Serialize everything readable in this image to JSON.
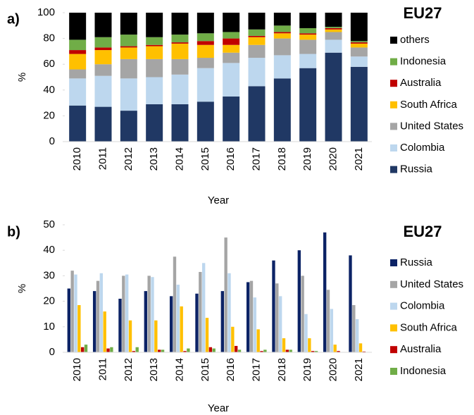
{
  "chart_data": [
    {
      "type": "bar",
      "stacked": true,
      "panel_label": "a)",
      "title": "EU27",
      "x_label": "Year",
      "y_label": "%",
      "categories": [
        "2010",
        "2011",
        "2012",
        "2013",
        "2014",
        "2015",
        "2016",
        "2017",
        "2018",
        "2019",
        "2020",
        "2021"
      ],
      "ylim": [
        0,
        100
      ],
      "yticks": [
        0,
        20,
        40,
        60,
        80,
        100
      ],
      "legend_reverse": true,
      "series": [
        {
          "name": "Russia",
          "color": "#203864",
          "values": [
            28,
            27,
            24,
            29,
            29,
            31,
            35,
            43,
            49,
            57,
            69,
            58
          ]
        },
        {
          "name": "Colombia",
          "color": "#bdd7ee",
          "values": [
            21,
            24,
            25,
            21,
            23,
            26,
            26,
            22,
            18,
            11,
            10,
            8
          ]
        },
        {
          "name": "United States",
          "color": "#a5a5a5",
          "values": [
            7,
            9,
            15,
            14,
            12,
            8,
            8,
            10,
            13,
            11,
            6,
            7
          ]
        },
        {
          "name": "South Africa",
          "color": "#ffc000",
          "values": [
            12,
            11,
            9,
            10,
            12,
            10,
            6,
            6,
            4,
            4,
            2,
            3
          ]
        },
        {
          "name": "Australia",
          "color": "#c00000",
          "values": [
            3,
            2,
            1,
            1,
            1,
            3,
            5,
            1,
            1,
            1,
            1,
            1
          ]
        },
        {
          "name": "Indonesia",
          "color": "#70ad47",
          "values": [
            8,
            8,
            9,
            6,
            6,
            6,
            5,
            5,
            5,
            4,
            1,
            1
          ]
        },
        {
          "name": "others",
          "color": "#000000",
          "values": [
            21,
            19,
            17,
            19,
            17,
            16,
            15,
            13,
            10,
            12,
            11,
            22
          ]
        }
      ]
    },
    {
      "type": "bar",
      "stacked": false,
      "panel_label": "b)",
      "title": "EU27",
      "x_label": "Year",
      "y_label": "%",
      "categories": [
        "2010",
        "2011",
        "2012",
        "2013",
        "2014",
        "2015",
        "2016",
        "2017",
        "2018",
        "2019",
        "2020",
        "2021"
      ],
      "ylim": [
        0,
        50
      ],
      "yticks": [
        0,
        10,
        20,
        30,
        40,
        50
      ],
      "legend_reverse": false,
      "series": [
        {
          "name": "Russia",
          "color": "#0c2366",
          "values": [
            25,
            24,
            21,
            24,
            22,
            23,
            24,
            27.5,
            36,
            40,
            47,
            38
          ]
        },
        {
          "name": "United States",
          "color": "#a5a5a5",
          "values": [
            32,
            28,
            30,
            30,
            37.5,
            31.5,
            45,
            28,
            27,
            30,
            24.5,
            18.5
          ]
        },
        {
          "name": "Colombia",
          "color": "#bdd7ee",
          "values": [
            30.5,
            31,
            30.5,
            29.5,
            26.5,
            35,
            31,
            21.5,
            22,
            15,
            17,
            13
          ]
        },
        {
          "name": "South Africa",
          "color": "#ffc000",
          "values": [
            18.5,
            16,
            12.5,
            12.5,
            18,
            13.5,
            10,
            9,
            5.5,
            5.5,
            3,
            3.5
          ]
        },
        {
          "name": "Australia",
          "color": "#c00000",
          "values": [
            2,
            1.5,
            0.5,
            1,
            0.5,
            2,
            2.5,
            0.5,
            1,
            0.5,
            0.5,
            0.3
          ]
        },
        {
          "name": "Indonesia",
          "color": "#70ad47",
          "values": [
            3,
            2,
            2,
            1,
            1.5,
            1.5,
            1,
            1,
            1,
            0.5,
            0,
            0
          ]
        }
      ]
    }
  ]
}
